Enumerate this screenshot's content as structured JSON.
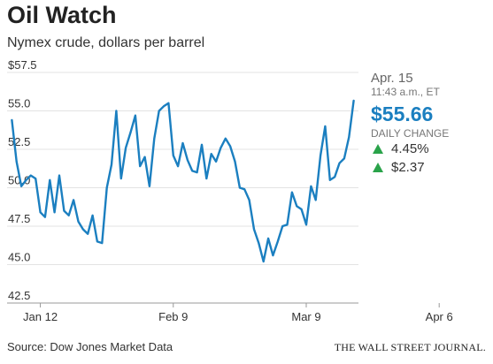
{
  "header": {
    "title": "Oil Watch",
    "subtitle": "Nymex crude, dollars per barrel"
  },
  "side_panel": {
    "date": "Apr. 15",
    "time": "11:43 a.m., ET",
    "price": "$55.66",
    "change_label": "DAILY CHANGE",
    "pct_change": "4.45%",
    "abs_change": "$2.37",
    "up_color": "#2aa34a"
  },
  "footer": {
    "source": "Source: Dow Jones Market Data",
    "publisher": "THE WALL STREET JOURNAL."
  },
  "colors": {
    "line": "#1b7fc0",
    "price": "#1b7fc0",
    "gridline": "#e3e3e3",
    "baseline": "#999999"
  },
  "chart_data": {
    "type": "line",
    "title": "Oil Watch",
    "subtitle": "Nymex crude, dollars per barrel",
    "xlabel": "",
    "ylabel": "",
    "ylim": [
      42.5,
      57.5
    ],
    "yticks": [
      "$57.5",
      "55.0",
      "52.5",
      "50.0",
      "47.5",
      "45.0",
      "42.5"
    ],
    "ytick_values": [
      57.5,
      55.0,
      52.5,
      50.0,
      47.5,
      45.0,
      42.5
    ],
    "xticks": [
      "Jan 12",
      "Feb 9",
      "Mar 9",
      "Apr 6"
    ],
    "xtick_positions": [
      6,
      34,
      62,
      90
    ],
    "grid": true,
    "series": [
      {
        "values": [
          [
            0,
            54.4
          ],
          [
            1,
            51.7
          ],
          [
            2,
            50.1
          ],
          [
            3,
            50.5
          ],
          [
            4,
            50.8
          ],
          [
            5,
            50.6
          ],
          [
            6,
            48.4
          ],
          [
            7,
            48.1
          ],
          [
            8,
            50.5
          ],
          [
            9,
            48.4
          ],
          [
            10,
            50.8
          ],
          [
            11,
            48.5
          ],
          [
            12,
            48.2
          ],
          [
            13,
            49.2
          ],
          [
            14,
            47.8
          ],
          [
            15,
            47.3
          ],
          [
            16,
            47.0
          ],
          [
            17,
            48.2
          ],
          [
            18,
            46.5
          ],
          [
            19,
            46.4
          ],
          [
            20,
            50.0
          ],
          [
            21,
            51.5
          ],
          [
            22,
            55.0
          ],
          [
            23,
            50.6
          ],
          [
            24,
            52.6
          ],
          [
            25,
            53.6
          ],
          [
            26,
            54.7
          ],
          [
            27,
            51.4
          ],
          [
            28,
            52.0
          ],
          [
            29,
            50.1
          ],
          [
            30,
            53.2
          ],
          [
            31,
            55.0
          ],
          [
            32,
            55.3
          ],
          [
            33,
            55.5
          ],
          [
            34,
            52.1
          ],
          [
            35,
            51.4
          ],
          [
            36,
            52.9
          ],
          [
            37,
            51.8
          ],
          [
            38,
            51.1
          ],
          [
            39,
            51.0
          ],
          [
            40,
            52.8
          ],
          [
            41,
            50.6
          ],
          [
            42,
            52.2
          ],
          [
            43,
            51.7
          ],
          [
            44,
            52.6
          ],
          [
            45,
            53.2
          ],
          [
            46,
            52.7
          ],
          [
            47,
            51.7
          ],
          [
            48,
            50.0
          ],
          [
            49,
            49.9
          ],
          [
            50,
            49.2
          ],
          [
            51,
            47.3
          ],
          [
            52,
            46.4
          ],
          [
            53,
            45.2
          ],
          [
            54,
            46.7
          ],
          [
            55,
            45.6
          ],
          [
            56,
            46.5
          ],
          [
            57,
            47.5
          ],
          [
            58,
            47.6
          ],
          [
            59,
            49.7
          ],
          [
            60,
            48.8
          ],
          [
            61,
            48.6
          ],
          [
            62,
            47.6
          ],
          [
            63,
            50.1
          ],
          [
            64,
            49.2
          ],
          [
            65,
            52.1
          ],
          [
            66,
            54.0
          ],
          [
            67,
            50.5
          ],
          [
            68,
            50.7
          ],
          [
            69,
            51.6
          ],
          [
            70,
            51.9
          ],
          [
            71,
            53.3
          ],
          [
            72,
            55.66
          ]
        ]
      }
    ]
  }
}
